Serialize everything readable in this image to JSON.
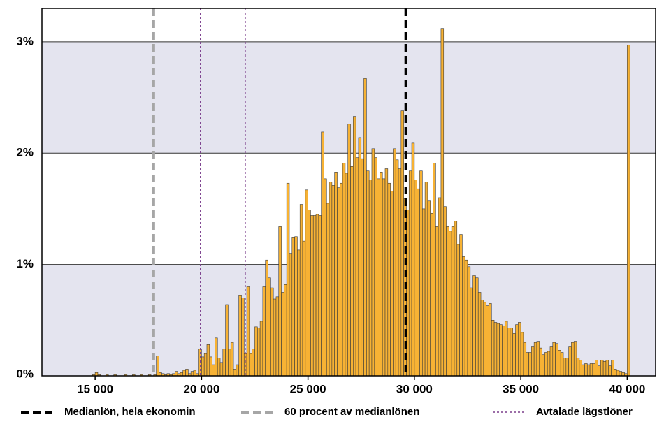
{
  "chart_data": {
    "type": "histogram",
    "bins": [
      14750,
      14875,
      15000,
      15125,
      15250,
      15375,
      15500,
      15625,
      15750,
      15875,
      16000,
      16125,
      16250,
      16375,
      16500,
      16625,
      16750,
      16875,
      17000,
      17125,
      17250,
      17375,
      17500,
      17625,
      17750,
      17875,
      18000,
      18125,
      18250,
      18375,
      18500,
      18625,
      18750,
      18875,
      19000,
      19125,
      19250,
      19375,
      19500,
      19625,
      19750,
      19875,
      20000,
      20125,
      20250,
      20375,
      20500,
      20625,
      20750,
      20875,
      21000,
      21125,
      21250,
      21375,
      21500,
      21625,
      21750,
      21875,
      22000,
      22125,
      22250,
      22375,
      22500,
      22625,
      22750,
      22875,
      23000,
      23125,
      23250,
      23375,
      23500,
      23625,
      23750,
      23875,
      24000,
      24125,
      24250,
      24375,
      24500,
      24625,
      24750,
      24875,
      25000,
      25125,
      25250,
      25375,
      25500,
      25625,
      25750,
      25875,
      26000,
      26125,
      26250,
      26375,
      26500,
      26625,
      26750,
      26875,
      27000,
      27125,
      27250,
      27375,
      27500,
      27625,
      27750,
      27875,
      28000,
      28125,
      28250,
      28375,
      28500,
      28625,
      28750,
      28875,
      29000,
      29125,
      29250,
      29375,
      29500,
      29625,
      29750,
      29875,
      30000,
      30125,
      30250,
      30375,
      30500,
      30625,
      30750,
      30875,
      31000,
      31125,
      31250,
      31375,
      31500,
      31625,
      31750,
      31875,
      32000,
      32125,
      32250,
      32375,
      32500,
      32625,
      32750,
      32875,
      33000,
      33125,
      33250,
      33375,
      33500,
      33625,
      33750,
      33875,
      34000,
      34125,
      34250,
      34375,
      34500,
      34625,
      34750,
      34875,
      35000,
      35125,
      35250,
      35375,
      35500,
      35625,
      35750,
      35875,
      36000,
      36125,
      36250,
      36375,
      36500,
      36625,
      36750,
      36875,
      37000,
      37125,
      37250,
      37375,
      37500,
      37625,
      37750,
      37875,
      38000,
      38125,
      38250,
      38375,
      38500,
      38625,
      38750,
      38875,
      39000,
      39125,
      39250,
      39375,
      39500,
      39625,
      39750,
      39875,
      40000,
      40125
    ],
    "values": [
      0,
      0.01,
      0.03,
      0.01,
      0,
      0,
      0.01,
      0,
      0,
      0.01,
      0,
      0,
      0,
      0.01,
      0,
      0,
      0.01,
      0,
      0,
      0.01,
      0,
      0,
      0.01,
      0,
      0.01,
      0.18,
      0.03,
      0.02,
      0.01,
      0.02,
      0.01,
      0.02,
      0.04,
      0.02,
      0.03,
      0.05,
      0.06,
      0.02,
      0.04,
      0.05,
      0.02,
      0.24,
      0.17,
      0.2,
      0.28,
      0.17,
      0.1,
      0.34,
      0.16,
      0.12,
      0.24,
      0.64,
      0.24,
      0.3,
      0.06,
      0.1,
      0.72,
      0.7,
      0.2,
      0.8,
      0.2,
      0.24,
      0.44,
      0.43,
      0.49,
      0.8,
      1.04,
      0.88,
      0.79,
      0.69,
      0.71,
      1.34,
      0.75,
      0.82,
      1.73,
      1.1,
      1.24,
      1.25,
      1.13,
      1.54,
      1.21,
      1.67,
      1.49,
      1.44,
      1.44,
      1.45,
      1.44,
      2.19,
      1.77,
      1.55,
      1.74,
      1.71,
      1.83,
      1.69,
      1.73,
      1.91,
      1.82,
      2.26,
      1.88,
      2.33,
      1.96,
      2.14,
      1.95,
      2.67,
      1.84,
      1.76,
      2.04,
      1.96,
      1.77,
      1.83,
      1.77,
      1.86,
      1.73,
      1.66,
      2.04,
      1.94,
      1.86,
      2.38,
      1.59,
      1.49,
      1.84,
      2.09,
      1.76,
      1.68,
      1.84,
      1.5,
      1.74,
      1.57,
      1.46,
      1.91,
      1.34,
      1.6,
      3.12,
      1.52,
      1.34,
      1.3,
      1.34,
      1.39,
      1.18,
      1.27,
      1.07,
      1.04,
      0.98,
      0.79,
      0.9,
      0.88,
      0.75,
      0.68,
      0.66,
      0.63,
      0.65,
      0.5,
      0.48,
      0.47,
      0.46,
      0.45,
      0.49,
      0.43,
      0.43,
      0.38,
      0.46,
      0.48,
      0.39,
      0.3,
      0.21,
      0.21,
      0.26,
      0.3,
      0.31,
      0.25,
      0.19,
      0.21,
      0.22,
      0.26,
      0.3,
      0.29,
      0.23,
      0.21,
      0.16,
      0.16,
      0.26,
      0.3,
      0.31,
      0.16,
      0.14,
      0.1,
      0.11,
      0.1,
      0.11,
      0.11,
      0.14,
      0.09,
      0.14,
      0.13,
      0.14,
      0.09,
      0.14,
      0.06,
      0.05,
      0.04,
      0.03,
      0.02,
      2.97
    ],
    "color": "#f7b234",
    "xlim": [
      12500,
      41400
    ],
    "xticks": [
      {
        "value": 15000,
        "label": "15 000"
      },
      {
        "value": 20000,
        "label": "20 000"
      },
      {
        "value": 25000,
        "label": "25 000"
      },
      {
        "value": 30000,
        "label": "30 000"
      },
      {
        "value": 35000,
        "label": "35 000"
      },
      {
        "value": 40000,
        "label": "40 000"
      }
    ],
    "ylim": [
      0,
      3.3
    ],
    "yticks": [
      {
        "value": 0,
        "label": "0%"
      },
      {
        "value": 1,
        "label": "1%"
      },
      {
        "value": 2,
        "label": "2%"
      },
      {
        "value": 3,
        "label": "3%"
      }
    ],
    "grid": true,
    "band_color": "#e4e4ef",
    "reference_lines": [
      {
        "name": "Medianlön, hela ekonomin",
        "color": "#000000",
        "style": "dashed",
        "x": [
          29600
        ]
      },
      {
        "name": "60 procent av medianlönen",
        "color": "#a6a6a6",
        "style": "dashed",
        "x": [
          17750
        ]
      },
      {
        "name": "Avtalade lägstlöner",
        "color": "#7b3f8c",
        "style": "dotted",
        "x": [
          19950,
          22050
        ]
      }
    ],
    "legend": "bottom"
  }
}
